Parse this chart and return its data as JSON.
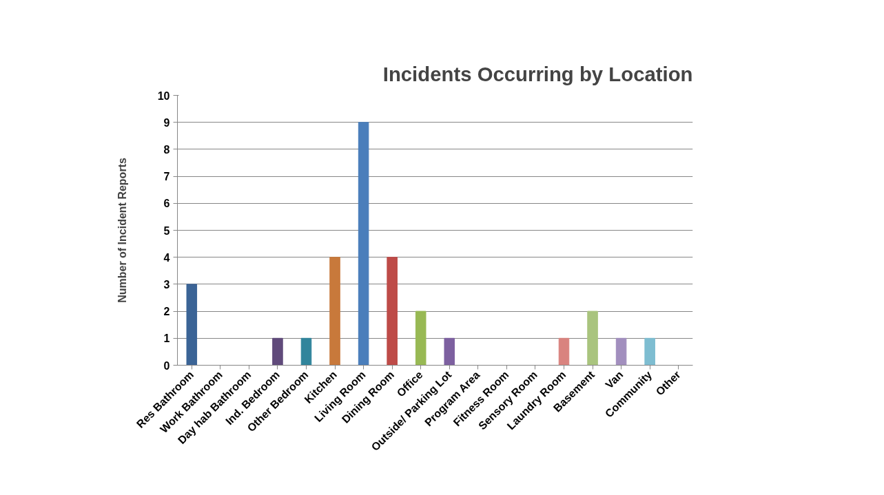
{
  "chart_data": {
    "type": "bar",
    "title": "Incidents Occurring by Location",
    "ylabel": "Number of Incident Reports",
    "categories": [
      "Res Bathroom",
      "Work Bathroom",
      "Day hab Bathroom",
      "Ind. Bedroom",
      "Other Bedroom",
      "Kitchen",
      "Living Room",
      "Dining Room",
      "Office",
      "Outside/ Parking Lot",
      "Program Area",
      "Fitness Room",
      "Sensory Room",
      "Laundry Room",
      "Basement",
      "Van",
      "Community",
      "Other"
    ],
    "values": [
      3,
      0,
      0,
      1,
      1,
      4,
      9,
      4,
      2,
      1,
      0,
      0,
      0,
      1,
      2,
      1,
      1,
      0
    ],
    "colors": [
      "#3b6496",
      "#9c3d3a",
      "#7a9441",
      "#604a7b",
      "#31859c",
      "#c8793b",
      "#4a7ebb",
      "#be4b48",
      "#98b954",
      "#7d60a0",
      "#46aac5",
      "#f79646",
      "#2c4d75",
      "#d9837f",
      "#a9c47e",
      "#a28fbe",
      "#7ebdd1",
      "#f5a76e"
    ],
    "ylim": [
      0,
      10
    ],
    "yticks": [
      0,
      1,
      2,
      3,
      4,
      5,
      6,
      7,
      8,
      9,
      10
    ],
    "grid": "y"
  }
}
